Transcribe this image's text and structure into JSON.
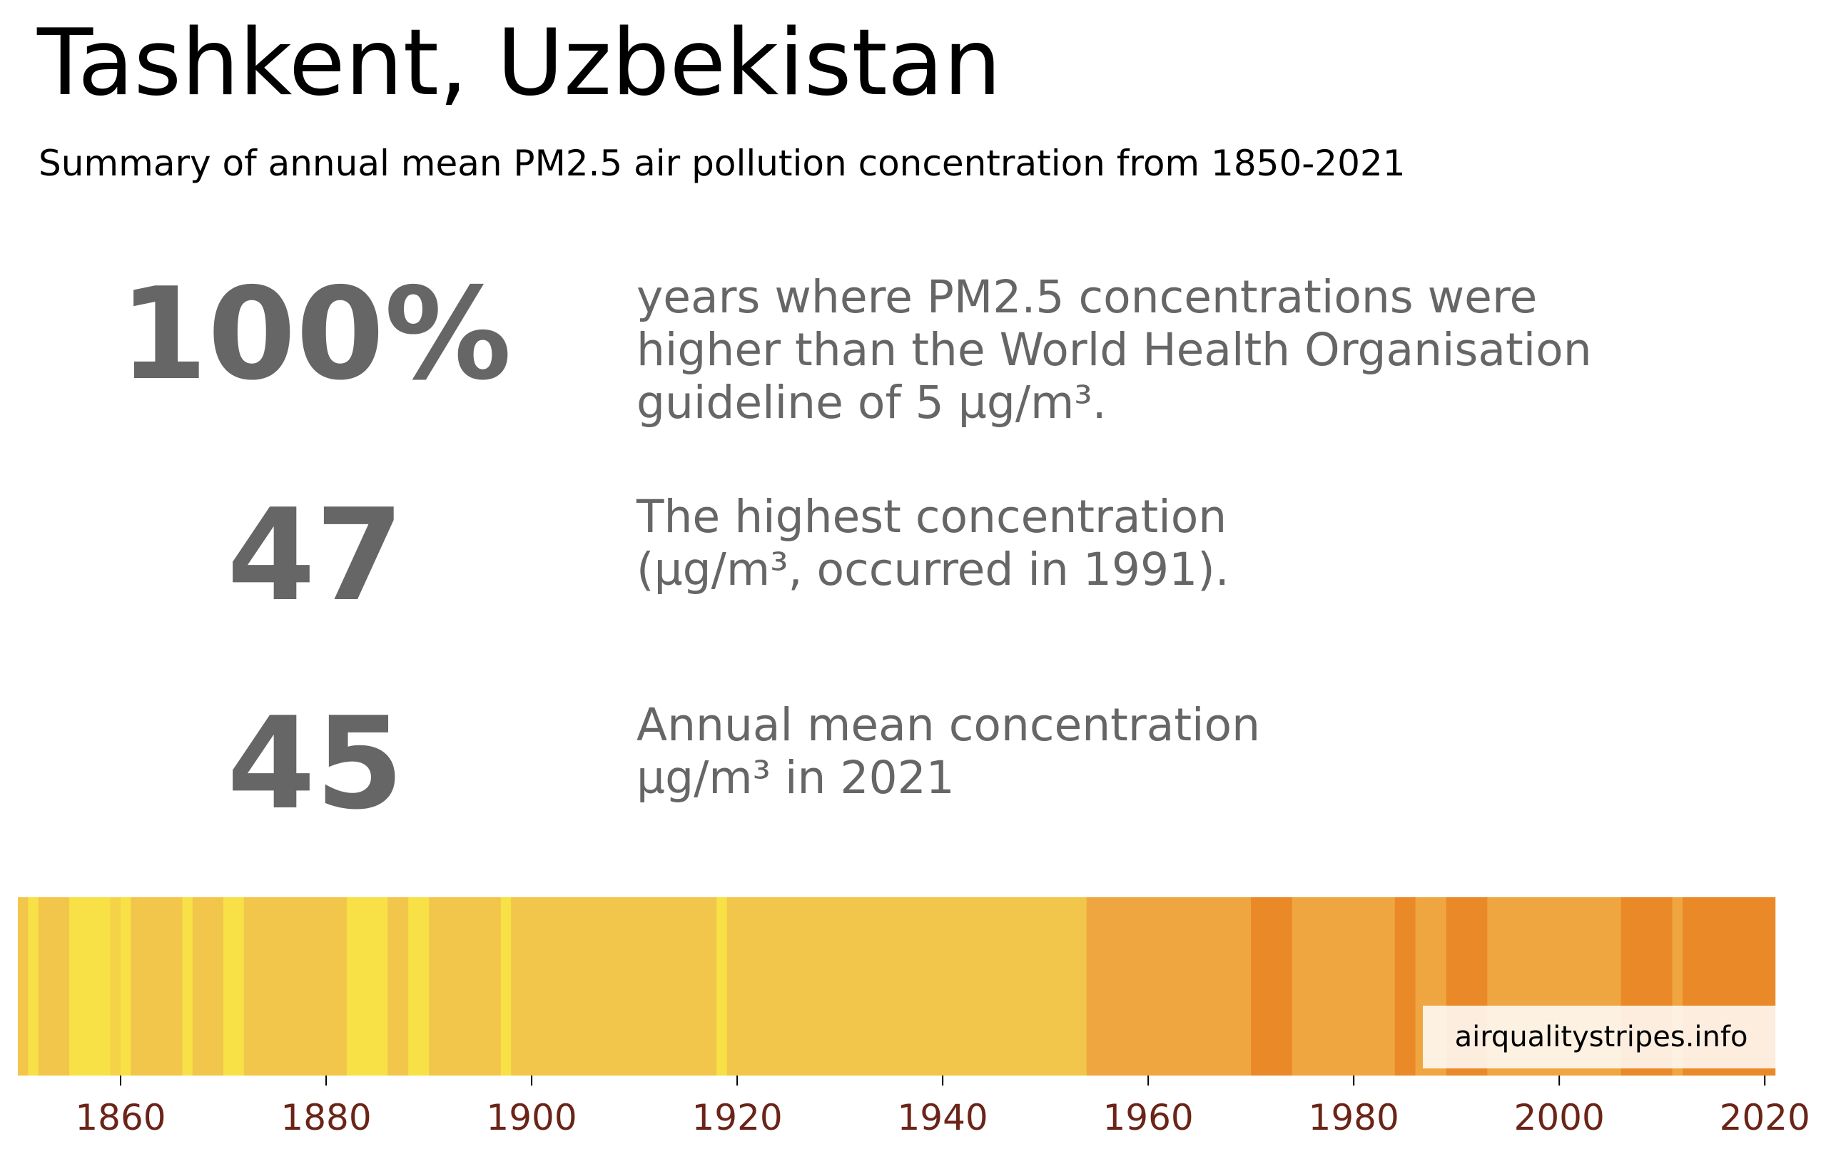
{
  "title": "Tashkent, Uzbekistan",
  "subtitle": "Summary of annual mean PM2.5 air pollution concentration from 1850-2021",
  "stats": [
    {
      "value": "100%",
      "lines": [
        "years where PM2.5 concentrations were",
        "higher than the World Health Organisation",
        "guideline of 5 µg/m³."
      ]
    },
    {
      "value": "47",
      "lines": [
        "The highest concentration",
        "(µg/m³, occurred in 1991)."
      ]
    },
    {
      "value": "45",
      "lines": [
        "Annual mean concentration",
        "µg/m³ in 2021"
      ]
    }
  ],
  "source_label": "airqualitystripes.info",
  "colors": {
    "text_gray": "#666666",
    "tick_label": "#6b2418",
    "band_low": "#f8e047",
    "band_mid": "#f1c64a",
    "band_high": "#f0a640",
    "band_top": "#e98928"
  },
  "chart_data": {
    "type": "heatmap",
    "x_range": [
      1850,
      2021
    ],
    "xticks": [
      1860,
      1880,
      1900,
      1920,
      1940,
      1960,
      1980,
      2000,
      2020
    ],
    "color_bands": [
      {
        "from": 1850,
        "to": 1851,
        "color": "#f1c64a"
      },
      {
        "from": 1851,
        "to": 1852,
        "color": "#f8e047"
      },
      {
        "from": 1852,
        "to": 1855,
        "color": "#f1c64a"
      },
      {
        "from": 1855,
        "to": 1859,
        "color": "#f8e047"
      },
      {
        "from": 1859,
        "to": 1860,
        "color": "#f4d348"
      },
      {
        "from": 1860,
        "to": 1861,
        "color": "#f8e047"
      },
      {
        "from": 1861,
        "to": 1866,
        "color": "#f1c64a"
      },
      {
        "from": 1866,
        "to": 1867,
        "color": "#f8e047"
      },
      {
        "from": 1867,
        "to": 1870,
        "color": "#f1c64a"
      },
      {
        "from": 1870,
        "to": 1872,
        "color": "#f8e047"
      },
      {
        "from": 1872,
        "to": 1882,
        "color": "#f1c64a"
      },
      {
        "from": 1882,
        "to": 1886,
        "color": "#f8e047"
      },
      {
        "from": 1886,
        "to": 1888,
        "color": "#f1c64a"
      },
      {
        "from": 1888,
        "to": 1890,
        "color": "#f8e047"
      },
      {
        "from": 1890,
        "to": 1897,
        "color": "#f1c64a"
      },
      {
        "from": 1897,
        "to": 1898,
        "color": "#f8e047"
      },
      {
        "from": 1898,
        "to": 1918,
        "color": "#f1c64a"
      },
      {
        "from": 1918,
        "to": 1919,
        "color": "#f8e047"
      },
      {
        "from": 1919,
        "to": 1954,
        "color": "#f1c64a"
      },
      {
        "from": 1954,
        "to": 1970,
        "color": "#f0a640"
      },
      {
        "from": 1970,
        "to": 1974,
        "color": "#e98928"
      },
      {
        "from": 1974,
        "to": 1984,
        "color": "#f0a640"
      },
      {
        "from": 1984,
        "to": 1986,
        "color": "#e98928"
      },
      {
        "from": 1986,
        "to": 1989,
        "color": "#f0a640"
      },
      {
        "from": 1989,
        "to": 1993,
        "color": "#e98928"
      },
      {
        "from": 1993,
        "to": 2006,
        "color": "#f0a640"
      },
      {
        "from": 2006,
        "to": 2011,
        "color": "#e98928"
      },
      {
        "from": 2011,
        "to": 2012,
        "color": "#f0a640"
      },
      {
        "from": 2012,
        "to": 2021,
        "color": "#e98928"
      }
    ]
  }
}
